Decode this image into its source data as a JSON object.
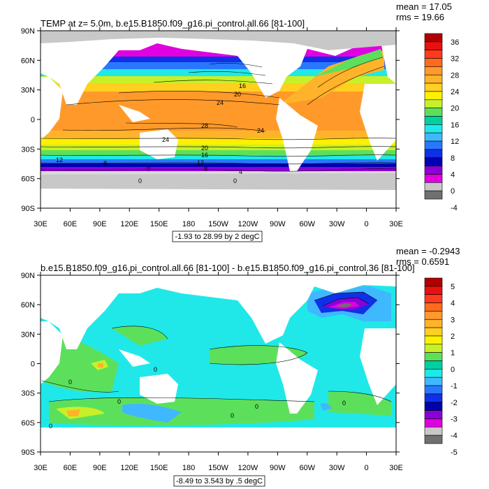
{
  "panels": [
    {
      "title": "TEMP at z=   5.0m, b.e15.B1850.f09_g16.pi_control.all.66 [81-100]",
      "stats": {
        "mean": "mean = 17.05",
        "rms": "rms = 19.66"
      },
      "range_note": "-1.93 to 28.99 by 2 degC",
      "y_ticks": [
        "90N",
        "60N",
        "30N",
        "0",
        "30S",
        "60S",
        "90S"
      ],
      "x_ticks": [
        "30E",
        "60E",
        "90E",
        "120E",
        "150E",
        "180",
        "150W",
        "120W",
        "90W",
        "60W",
        "30W",
        "0",
        "30E"
      ],
      "colorbar": {
        "labels": [
          "36",
          "32",
          "28",
          "24",
          "20",
          "16",
          "12",
          "8",
          "4",
          "0",
          "-4"
        ],
        "colors": [
          "#b20000",
          "#e81010",
          "#ff3a1e",
          "#ff6a1e",
          "#ff9a2a",
          "#ffb32a",
          "#ffd020",
          "#fff000",
          "#c8f028",
          "#5ce05c",
          "#00d0a0",
          "#20e8e8",
          "#40b8ff",
          "#2878ff",
          "#1030e8",
          "#0000b0",
          "#8c00d8",
          "#e000e0",
          "#c8c8c8",
          "#707070"
        ]
      },
      "contour_labels": [
        "16",
        "20",
        "24",
        "28",
        "24",
        "24",
        "20",
        "12",
        "16",
        "12",
        "8",
        "8",
        "0",
        "4",
        "0",
        "0"
      ]
    },
    {
      "title": "b.e15.B1850.f09_g16.pi_control.all.66 [81-100] - b.e15.B1850.f09_g16.pi_control.36 [81-100]",
      "stats": {
        "mean": "mean = -0.2943",
        "rms": "rms = 0.6591"
      },
      "range_note": "-8.49 to 3.543 by .5 degC",
      "y_ticks": [
        "90N",
        "60N",
        "30N",
        "0",
        "30S",
        "60S",
        "90S"
      ],
      "x_ticks": [
        "30E",
        "60E",
        "90E",
        "120E",
        "150E",
        "180",
        "150W",
        "120W",
        "90W",
        "60W",
        "30W",
        "0",
        "30E"
      ],
      "colorbar": {
        "labels": [
          "5",
          "4",
          "3",
          "2",
          "1",
          "0",
          "-1",
          "-2",
          "-3",
          "-4",
          "-5"
        ],
        "colors": [
          "#b20000",
          "#e81010",
          "#ff3a1e",
          "#ff6a1e",
          "#ff9a2a",
          "#ffb32a",
          "#ffd020",
          "#fff000",
          "#c8f028",
          "#5ce05c",
          "#00d0a0",
          "#20e8e8",
          "#40b8ff",
          "#2878ff",
          "#1030e8",
          "#0000b0",
          "#8c00d8",
          "#e000e0",
          "#c8c8c8",
          "#707070"
        ]
      },
      "contour_labels": [
        "0",
        "0",
        "0",
        "0",
        "0",
        "0",
        "0"
      ]
    }
  ],
  "chart_data": [
    {
      "type": "heatmap",
      "title": "TEMP at z=   5.0m, b.e15.B1850.f09_g16.pi_control.all.66 [81-100]",
      "xlabel": "",
      "ylabel": "",
      "x_range": [
        "30E",
        "30E"
      ],
      "y_range": [
        "90S",
        "90N"
      ],
      "contour_interval": 2,
      "min": -1.93,
      "max": 28.99,
      "units": "degC",
      "mean": 17.05,
      "rms": 19.66,
      "colorbar_levels": [
        -4,
        0,
        4,
        8,
        12,
        16,
        20,
        24,
        28,
        32,
        36
      ]
    },
    {
      "type": "heatmap",
      "title": "b.e15.B1850.f09_g16.pi_control.all.66 [81-100] - b.e15.B1850.f09_g16.pi_control.36 [81-100]",
      "xlabel": "",
      "ylabel": "",
      "x_range": [
        "30E",
        "30E"
      ],
      "y_range": [
        "90S",
        "90N"
      ],
      "contour_interval": 0.5,
      "min": -8.49,
      "max": 3.543,
      "units": "degC",
      "mean": -0.2943,
      "rms": 0.6591,
      "colorbar_levels": [
        -5,
        -4,
        -3,
        -2,
        -1,
        0,
        1,
        2,
        3,
        4,
        5
      ]
    }
  ]
}
